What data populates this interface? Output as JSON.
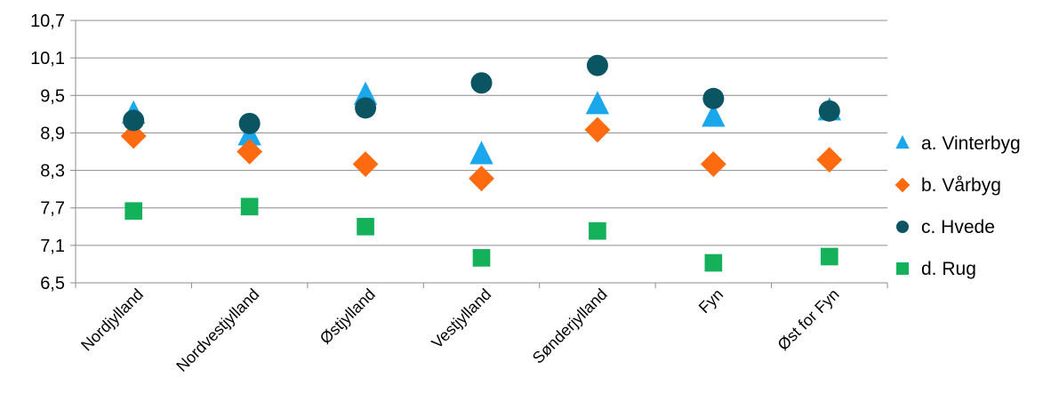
{
  "chart_data": {
    "type": "scatter",
    "title": "",
    "xlabel": "",
    "ylabel": "",
    "categories": [
      "Nordjylland",
      "Nordvestjylland",
      "Østjylland",
      "Vestjylland",
      "Sønderjylland",
      "Fyn",
      "Øst for Fyn"
    ],
    "y_ticks": [
      "6,5",
      "7,1",
      "7,7",
      "8,3",
      "8,9",
      "9,5",
      "10,1",
      "10,7"
    ],
    "ylim": [
      6.5,
      10.7
    ],
    "grid": true,
    "legend_position": "right",
    "series": [
      {
        "name": "a. Vinterbyg",
        "marker": "triangle",
        "color": "#1aa7ec",
        "values": [
          9.2,
          8.85,
          9.5,
          8.55,
          9.35,
          9.15,
          9.25
        ]
      },
      {
        "name": "b. Vårbyg",
        "marker": "diamond",
        "color": "#fd6a10",
        "values": [
          8.85,
          8.6,
          8.4,
          8.17,
          8.95,
          8.4,
          8.47
        ]
      },
      {
        "name": "c. Hvede",
        "marker": "circle",
        "color": "#0b5563",
        "values": [
          9.1,
          9.05,
          9.3,
          9.7,
          9.98,
          9.45,
          9.25
        ]
      },
      {
        "name": "d. Rug",
        "marker": "square",
        "color": "#14b05a",
        "values": [
          7.65,
          7.72,
          7.4,
          6.9,
          7.33,
          6.82,
          6.92
        ]
      }
    ]
  }
}
